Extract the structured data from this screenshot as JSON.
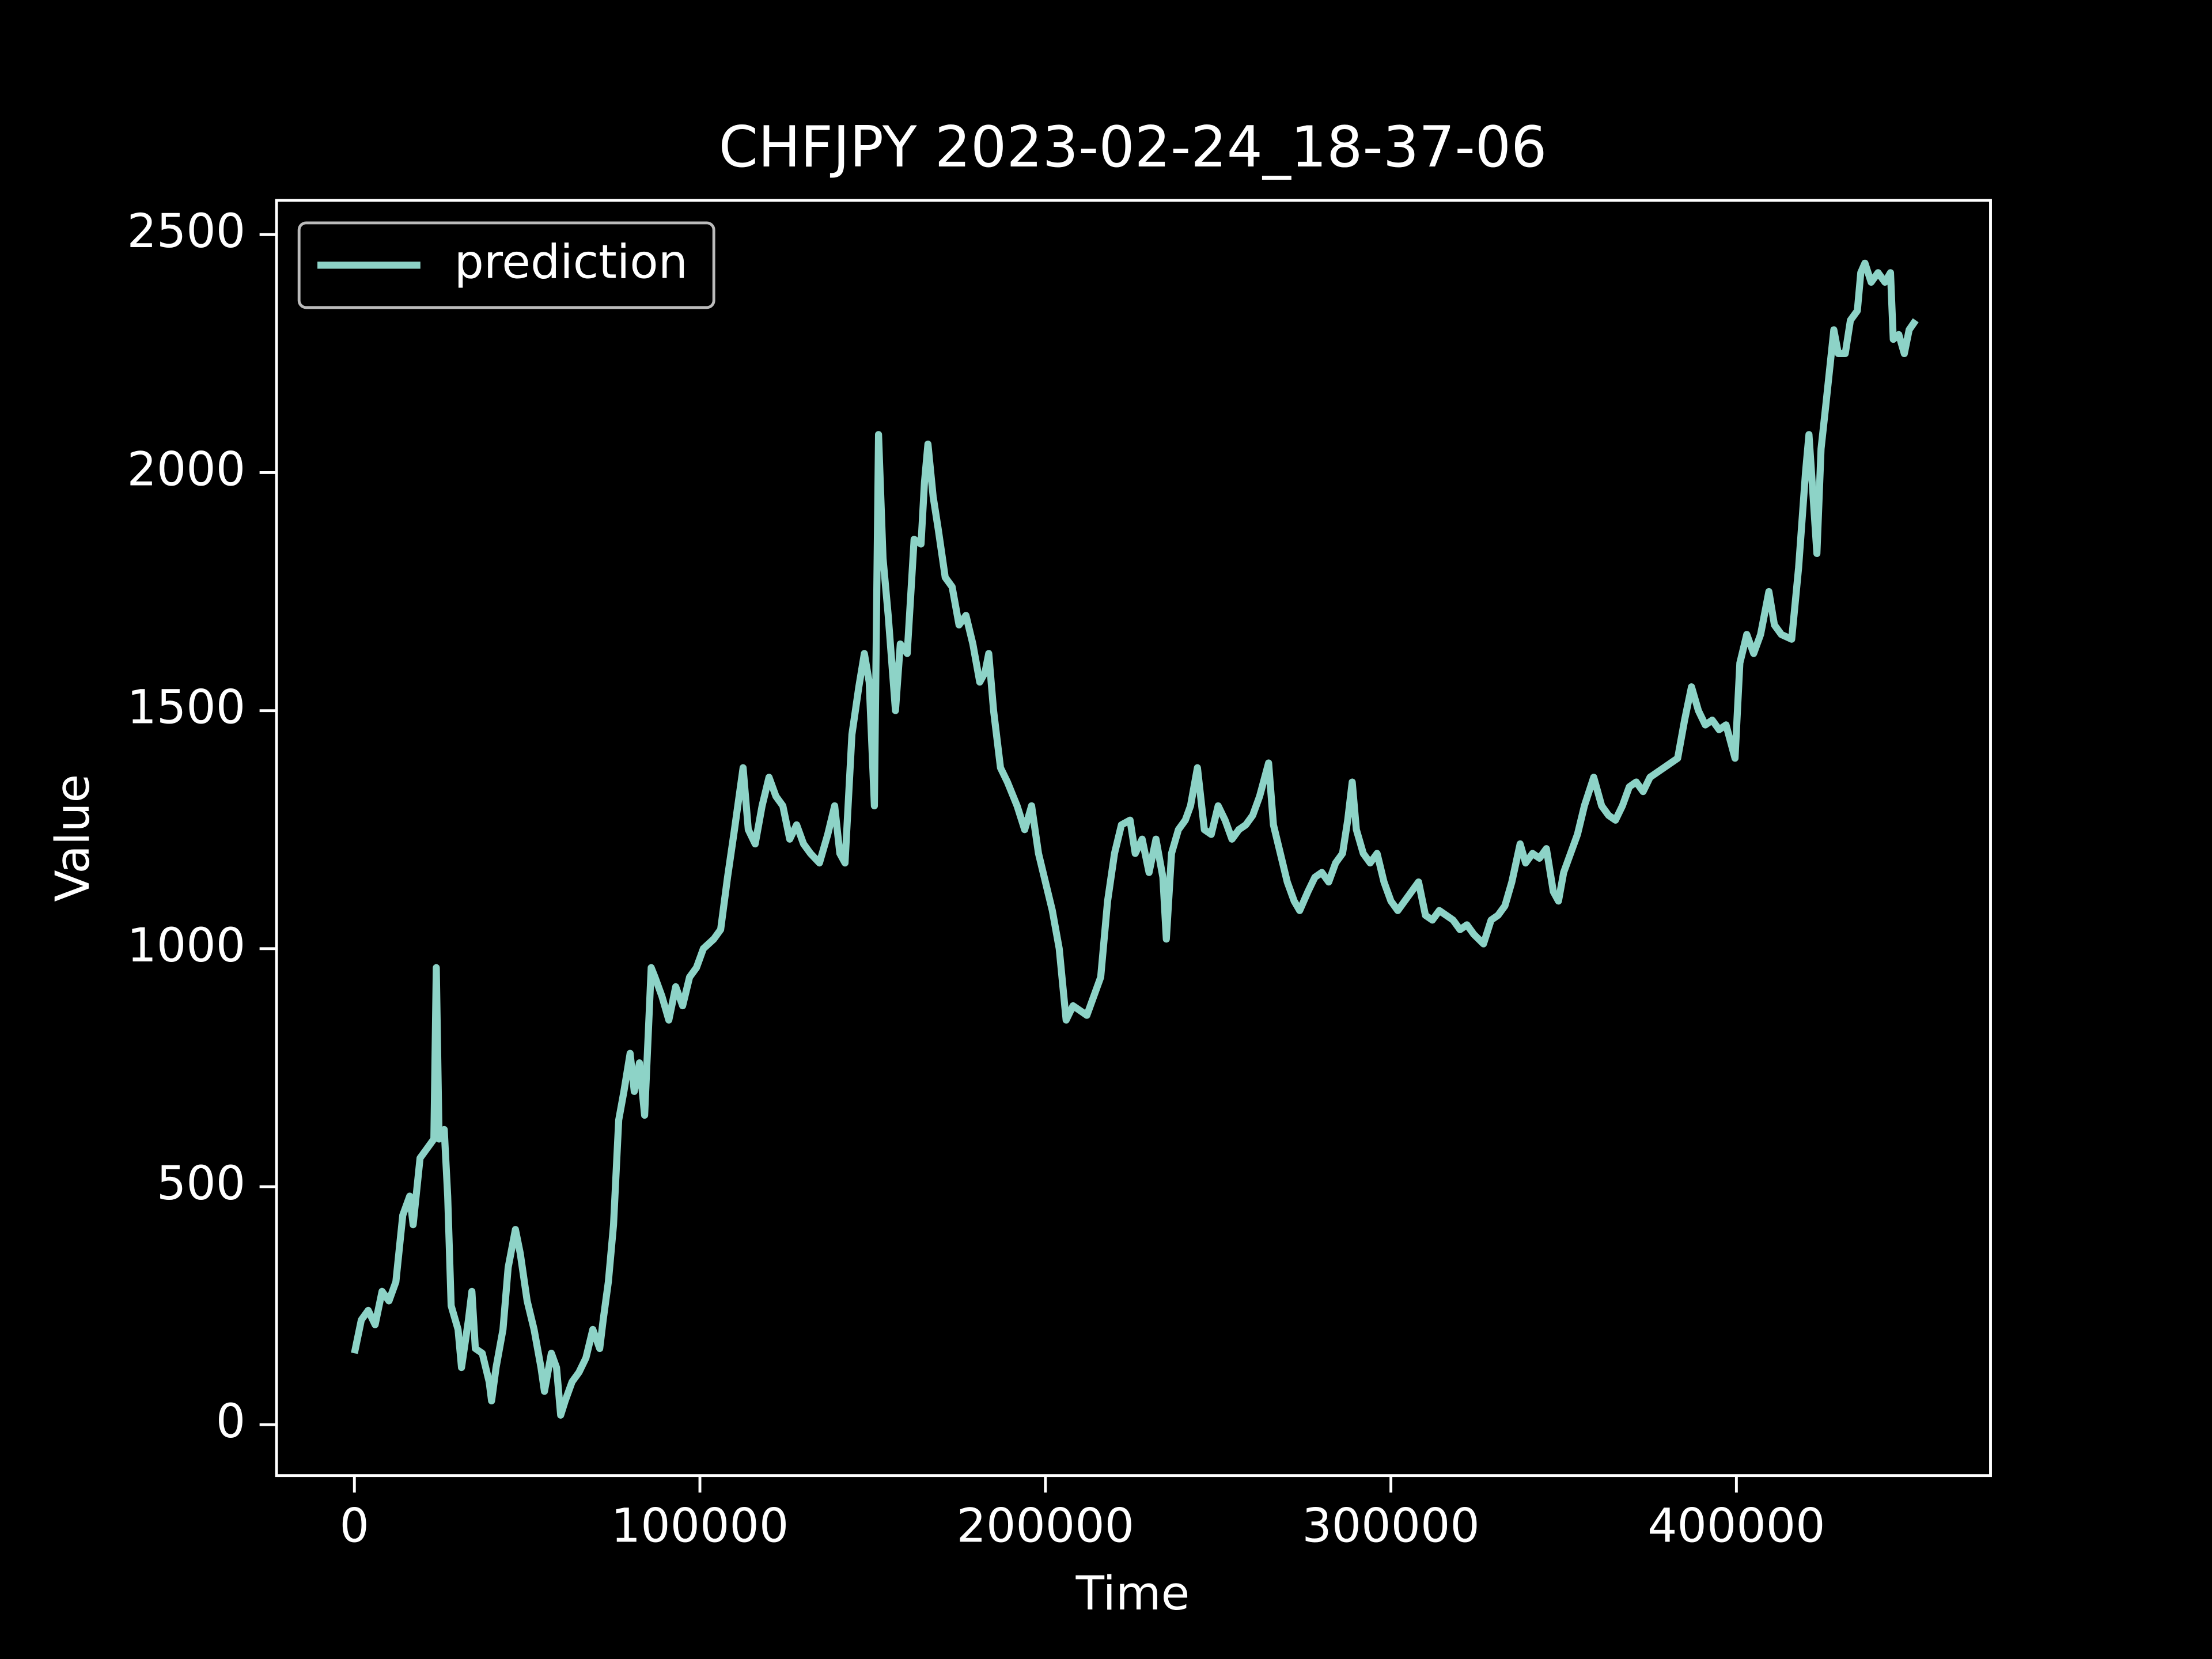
{
  "chart_data": {
    "type": "line",
    "title": "CHFJPY 2023-02-24_18-37-06",
    "xlabel": "Time",
    "ylabel": "Value",
    "legend": "upper left",
    "grid": false,
    "xlim": [
      -22550,
      473550
    ],
    "ylim": [
      -107,
      2572
    ],
    "xticks": [
      0,
      100000,
      200000,
      300000,
      400000
    ],
    "yticks": [
      0,
      500,
      1000,
      1500,
      2000,
      2500
    ],
    "x": [
      0,
      2000,
      4000,
      6000,
      8000,
      10000,
      12000,
      14000,
      16000,
      17000,
      19000,
      21000,
      23000,
      23700,
      24500,
      26000,
      27000,
      28000,
      30000,
      31000,
      33000,
      34000,
      35000,
      37000,
      39000,
      39700,
      41000,
      43000,
      44500,
      46600,
      48000,
      50000,
      52000,
      54000,
      55000,
      57000,
      58500,
      59700,
      61000,
      63000,
      65000,
      67000,
      69000,
      71000,
      72000,
      73500,
      75000,
      76500,
      78000,
      79800,
      81000,
      82500,
      84000,
      85900,
      87000,
      89000,
      91000,
      93000,
      95000,
      97000,
      99000,
      101000,
      104000,
      106000,
      108000,
      110000,
      112500,
      114000,
      116000,
      118000,
      120000,
      122000,
      124000,
      126000,
      128000,
      130000,
      132000,
      134600,
      137000,
      139000,
      140500,
      142000,
      144000,
      146000,
      147600,
      149000,
      150500,
      151700,
      153000,
      154500,
      156600,
      158000,
      160000,
      162000,
      164000,
      165000,
      166000,
      167500,
      169000,
      171000,
      173000,
      175000,
      177000,
      179000,
      181000,
      182500,
      183600,
      185000,
      187000,
      189000,
      191800,
      194000,
      196000,
      198000,
      200000,
      202000,
      204000,
      206000,
      208000,
      210000,
      212000,
      214000,
      216000,
      218000,
      220000,
      222000,
      224500,
      226000,
      228000,
      230000,
      232000,
      234000,
      235000,
      236500,
      238500,
      240500,
      242000,
      244000,
      246000,
      248000,
      250000,
      252000,
      254000,
      256000,
      258000,
      260000,
      262000,
      264600,
      266000,
      268000,
      270000,
      272000,
      273600,
      276000,
      278000,
      280000,
      282000,
      284000,
      286000,
      287500,
      288800,
      290000,
      292000,
      294000,
      296000,
      298000,
      300000,
      302000,
      304000,
      306000,
      308000,
      310000,
      312000,
      314000,
      316000,
      318000,
      320000,
      322000,
      324000,
      326800,
      329000,
      331000,
      333000,
      335000,
      337400,
      339000,
      341000,
      343000,
      345000,
      347000,
      348500,
      350000,
      352000,
      354000,
      356000,
      358700,
      361000,
      363000,
      365000,
      367000,
      369000,
      371000,
      373000,
      375000,
      377000,
      379000,
      381000,
      383000,
      385000,
      387000,
      389000,
      391000,
      393000,
      395000,
      397000,
      399600,
      401000,
      403000,
      405000,
      407000,
      409400,
      411000,
      413000,
      416000,
      418000,
      420000,
      421000,
      422200,
      423300,
      424500,
      426000,
      428200,
      429500,
      431500,
      433000,
      435000,
      436000,
      437200,
      439000,
      441000,
      443000,
      444600,
      445400,
      447000,
      448600,
      450000,
      451900
    ],
    "series": [
      {
        "name": "prediction",
        "color": "#8dd3c7",
        "values": [
          150,
          220,
          240,
          210,
          280,
          260,
          300,
          440,
          480,
          420,
          560,
          580,
          600,
          960,
          600,
          620,
          480,
          250,
          200,
          120,
          220,
          280,
          160,
          150,
          90,
          50,
          120,
          200,
          330,
          410,
          360,
          260,
          200,
          120,
          70,
          150,
          120,
          20,
          50,
          90,
          110,
          140,
          200,
          160,
          220,
          300,
          420,
          640,
          700,
          780,
          700,
          760,
          650,
          960,
          940,
          900,
          850,
          920,
          880,
          940,
          960,
          1000,
          1020,
          1040,
          1150,
          1250,
          1380,
          1250,
          1220,
          1300,
          1360,
          1320,
          1300,
          1230,
          1260,
          1220,
          1200,
          1180,
          1240,
          1300,
          1200,
          1180,
          1450,
          1550,
          1620,
          1560,
          1300,
          2080,
          1820,
          1700,
          1500,
          1640,
          1620,
          1860,
          1850,
          1980,
          2060,
          1950,
          1880,
          1780,
          1760,
          1680,
          1700,
          1640,
          1560,
          1580,
          1620,
          1500,
          1380,
          1350,
          1300,
          1250,
          1300,
          1200,
          1140,
          1080,
          1000,
          850,
          880,
          870,
          860,
          900,
          940,
          1100,
          1200,
          1260,
          1270,
          1200,
          1230,
          1160,
          1230,
          1150,
          1020,
          1200,
          1250,
          1270,
          1300,
          1380,
          1250,
          1240,
          1300,
          1270,
          1230,
          1250,
          1260,
          1280,
          1320,
          1390,
          1260,
          1200,
          1140,
          1100,
          1080,
          1120,
          1150,
          1160,
          1140,
          1180,
          1200,
          1270,
          1350,
          1250,
          1200,
          1180,
          1200,
          1140,
          1100,
          1080,
          1100,
          1120,
          1140,
          1070,
          1060,
          1080,
          1070,
          1060,
          1040,
          1050,
          1030,
          1010,
          1060,
          1070,
          1090,
          1140,
          1220,
          1180,
          1200,
          1190,
          1210,
          1120,
          1100,
          1160,
          1200,
          1240,
          1300,
          1360,
          1300,
          1280,
          1270,
          1300,
          1340,
          1350,
          1330,
          1360,
          1370,
          1380,
          1390,
          1400,
          1480,
          1550,
          1500,
          1470,
          1480,
          1460,
          1470,
          1400,
          1600,
          1660,
          1620,
          1660,
          1750,
          1680,
          1660,
          1650,
          1800,
          2000,
          2080,
          1950,
          1830,
          2050,
          2150,
          2300,
          2250,
          2250,
          2320,
          2340,
          2420,
          2440,
          2400,
          2420,
          2400,
          2420,
          2280,
          2290,
          2250,
          2300,
          2320
        ]
      }
    ]
  }
}
